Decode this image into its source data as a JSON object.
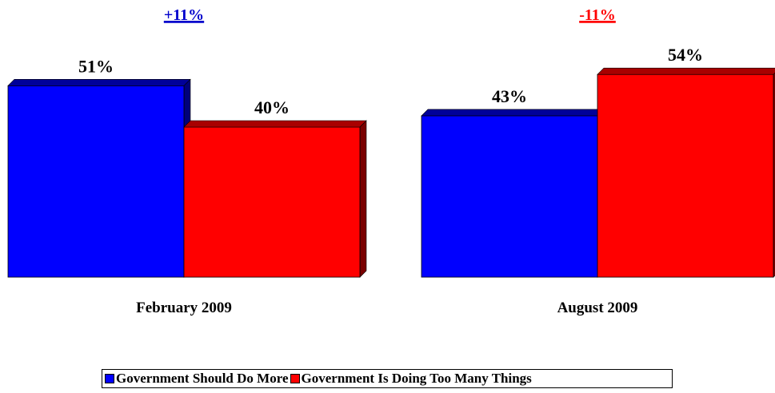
{
  "colors": {
    "series1": "#0000ff",
    "series1_top": "#000099",
    "series1_side": "#00007a",
    "series2": "#ff0000",
    "series2_top": "#a80000",
    "series2_side": "#7a0000",
    "annotation1": "#0000cc",
    "annotation2": "#ff0000"
  },
  "chart_data": {
    "type": "bar",
    "categories": [
      "February 2009",
      "August 2009"
    ],
    "series": [
      {
        "name": "Government Should Do More",
        "values": [
          51,
          43
        ]
      },
      {
        "name": "Government Is Doing Too Many Things",
        "values": [
          40,
          54
        ]
      }
    ],
    "value_labels": [
      [
        "51%",
        "40%"
      ],
      [
        "43%",
        "54%"
      ]
    ],
    "annotations": [
      "+11%",
      "-11%"
    ],
    "title": "",
    "xlabel": "",
    "ylabel": "",
    "ylim": [
      0,
      60
    ],
    "grid": false,
    "bar_style": "3d",
    "legend_position": "bottom"
  },
  "legend": {
    "items": [
      {
        "label": "Government Should Do More",
        "color_key": "series1"
      },
      {
        "label": "Government Is Doing Too Many Things",
        "color_key": "series2"
      }
    ]
  }
}
